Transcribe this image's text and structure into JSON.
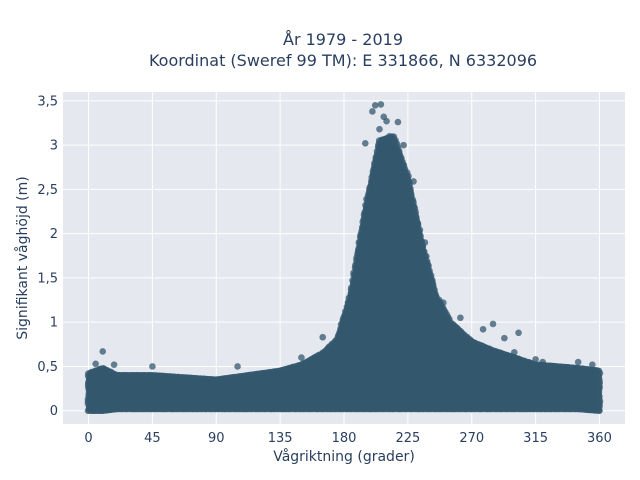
{
  "chart_data": {
    "type": "scatter",
    "title_line1": "År 1979 - 2019",
    "title_line2": "Koordinat (Sweref 99 TM): E 331866, N 6332096",
    "xlabel": "Vågriktning (grader)",
    "ylabel": "Signifikant våghöjd (m)",
    "xlim": [
      -18,
      378
    ],
    "ylim": [
      -0.15,
      3.6
    ],
    "x_ticks": [
      0,
      45,
      90,
      135,
      180,
      225,
      270,
      315,
      360
    ],
    "x_tick_labels": [
      "0",
      "45",
      "90",
      "135",
      "180",
      "225",
      "270",
      "315",
      "360"
    ],
    "y_ticks": [
      0,
      0.5,
      1,
      1.5,
      2,
      2.5,
      3,
      3.5
    ],
    "y_tick_labels": [
      "0",
      "0,5",
      "1",
      "1,5",
      "2",
      "2,5",
      "3",
      "3,5"
    ],
    "grid": true,
    "marker_color": "#34586e",
    "plot_background": "#e5e8ef",
    "envelope": {
      "x": [
        0,
        10,
        20,
        45,
        90,
        135,
        150,
        165,
        175,
        185,
        195,
        205,
        215,
        225,
        235,
        245,
        255,
        270,
        285,
        300,
        315,
        330,
        345,
        360
      ],
      "ymax": [
        0.42,
        0.48,
        0.4,
        0.4,
        0.35,
        0.45,
        0.52,
        0.65,
        0.8,
        1.35,
        2.3,
        3.05,
        3.1,
        2.65,
        1.9,
        1.3,
        1.0,
        0.78,
        0.68,
        0.6,
        0.52,
        0.5,
        0.48,
        0.45
      ],
      "ymin": [
        0.0,
        0.0,
        0.02,
        0.02,
        0.02,
        0.02,
        0.02,
        0.02,
        0.02,
        0.02,
        0.02,
        0.02,
        0.02,
        0.02,
        0.02,
        0.02,
        0.02,
        0.02,
        0.02,
        0.02,
        0.02,
        0.02,
        0.02,
        0.0
      ]
    },
    "outliers": [
      {
        "x": 10,
        "y": 0.67
      },
      {
        "x": 5,
        "y": 0.53
      },
      {
        "x": 18,
        "y": 0.52
      },
      {
        "x": 45,
        "y": 0.5
      },
      {
        "x": 105,
        "y": 0.5
      },
      {
        "x": 150,
        "y": 0.6
      },
      {
        "x": 165,
        "y": 0.83
      },
      {
        "x": 195,
        "y": 3.02
      },
      {
        "x": 200,
        "y": 3.38
      },
      {
        "x": 202,
        "y": 3.45
      },
      {
        "x": 206,
        "y": 3.46
      },
      {
        "x": 208,
        "y": 3.32
      },
      {
        "x": 210,
        "y": 3.27
      },
      {
        "x": 205,
        "y": 3.18
      },
      {
        "x": 212,
        "y": 3.1
      },
      {
        "x": 218,
        "y": 3.26
      },
      {
        "x": 222,
        "y": 3.0
      },
      {
        "x": 229,
        "y": 2.59
      },
      {
        "x": 232,
        "y": 2.12
      },
      {
        "x": 237,
        "y": 1.9
      },
      {
        "x": 250,
        "y": 1.22
      },
      {
        "x": 262,
        "y": 1.05
      },
      {
        "x": 278,
        "y": 0.92
      },
      {
        "x": 285,
        "y": 0.98
      },
      {
        "x": 293,
        "y": 0.82
      },
      {
        "x": 303,
        "y": 0.88
      },
      {
        "x": 300,
        "y": 0.66
      },
      {
        "x": 315,
        "y": 0.58
      },
      {
        "x": 320,
        "y": 0.55
      },
      {
        "x": 345,
        "y": 0.55
      },
      {
        "x": 355,
        "y": 0.52
      }
    ]
  }
}
